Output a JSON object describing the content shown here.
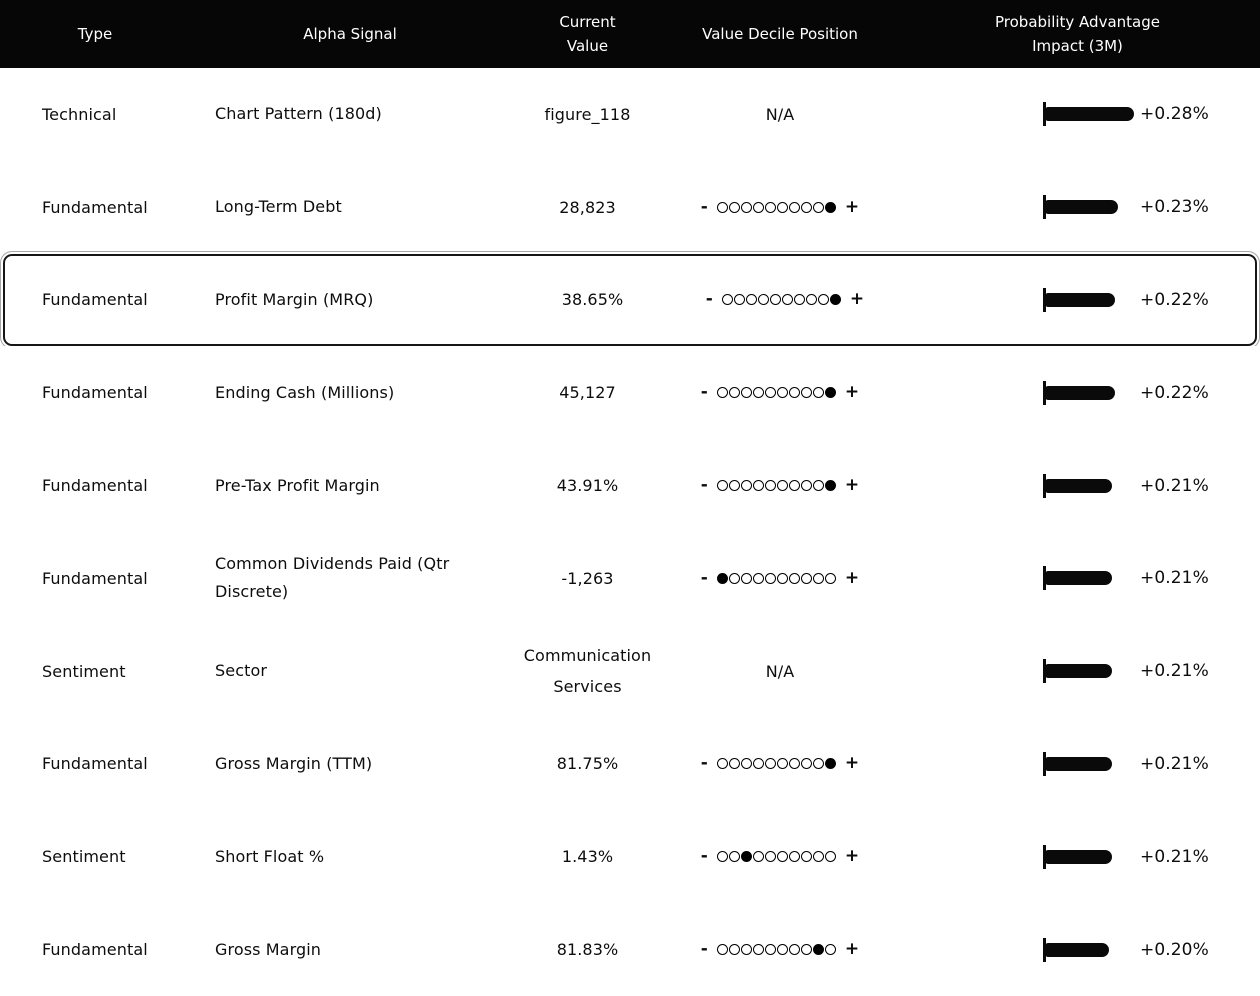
{
  "table": {
    "columns": [
      {
        "label": "Type"
      },
      {
        "label": "Alpha Signal"
      },
      {
        "label": "Current\nValue"
      },
      {
        "label": "Value Decile Position"
      },
      {
        "label": "Probability Advantage\nImpact (3M)"
      }
    ],
    "decile_scale": {
      "min_label": "-",
      "max_label": "+",
      "steps": 10
    },
    "na_label": "N/A",
    "rows": [
      {
        "type": "Technical",
        "signal": "Chart Pattern (180d)",
        "value": "figure_118",
        "decile": null,
        "impact_label": "+0.28%",
        "impact_pct": 0.28,
        "selected": false
      },
      {
        "type": "Fundamental",
        "signal": "Long-Term Debt",
        "value": "28,823",
        "decile": 10,
        "impact_label": "+0.23%",
        "impact_pct": 0.23,
        "selected": false
      },
      {
        "type": "Fundamental",
        "signal": "Profit Margin (MRQ)",
        "value": "38.65%",
        "decile": 10,
        "impact_label": "+0.22%",
        "impact_pct": 0.22,
        "selected": true
      },
      {
        "type": "Fundamental",
        "signal": "Ending Cash (Millions)",
        "value": "45,127",
        "decile": 10,
        "impact_label": "+0.22%",
        "impact_pct": 0.22,
        "selected": false
      },
      {
        "type": "Fundamental",
        "signal": "Pre-Tax Profit Margin",
        "value": "43.91%",
        "decile": 10,
        "impact_label": "+0.21%",
        "impact_pct": 0.21,
        "selected": false
      },
      {
        "type": "Fundamental",
        "signal": "Common Dividends Paid (Qtr Discrete)",
        "value": "-1,263",
        "decile": 1,
        "impact_label": "+0.21%",
        "impact_pct": 0.21,
        "selected": false
      },
      {
        "type": "Sentiment",
        "signal": "Sector",
        "value": "Communication Services",
        "decile": null,
        "impact_label": "+0.21%",
        "impact_pct": 0.21,
        "selected": false
      },
      {
        "type": "Fundamental",
        "signal": "Gross Margin (TTM)",
        "value": "81.75%",
        "decile": 10,
        "impact_label": "+0.21%",
        "impact_pct": 0.21,
        "selected": false
      },
      {
        "type": "Sentiment",
        "signal": "Short Float %",
        "value": "1.43%",
        "decile": 3,
        "impact_label": "+0.21%",
        "impact_pct": 0.21,
        "selected": false
      },
      {
        "type": "Fundamental",
        "signal": "Gross Margin",
        "value": "81.83%",
        "decile": 9,
        "impact_label": "+0.20%",
        "impact_pct": 0.2,
        "selected": false
      }
    ]
  },
  "colors": {
    "header_bg": "#060606",
    "header_text": "#ffffff",
    "row_text": "#0d0d0d",
    "bar": "#0a0a0a",
    "highlight_border": "#161616",
    "highlight_ring": "#a6a6a6"
  }
}
